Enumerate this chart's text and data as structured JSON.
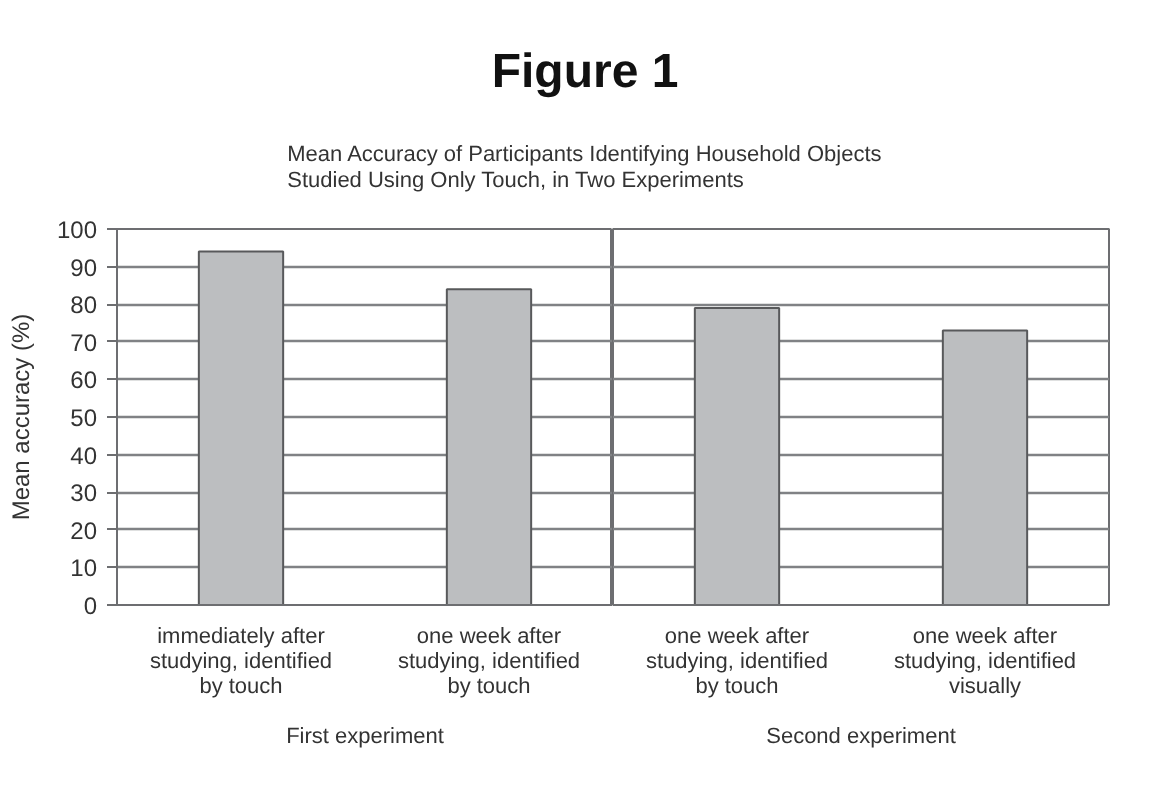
{
  "chart_data": [
    {
      "type": "bar",
      "title": "Figure 1",
      "subtitle": "Mean Accuracy of Participants Identifying Household Objects Studied Using Only Touch, in Two Experiments",
      "ylabel": "Mean accuracy (%)",
      "xlabel": "First experiment",
      "categories": [
        "immediately after studying, identified by touch",
        "one week after studying, identified by touch"
      ],
      "values": [
        94,
        84
      ],
      "color": "#bcbec0",
      "ylim": [
        0,
        100
      ],
      "yticks": [
        0,
        10,
        20,
        30,
        40,
        50,
        60,
        70,
        80,
        90,
        100
      ],
      "grid": "y"
    },
    {
      "type": "bar",
      "xlabel": "Second experiment",
      "categories": [
        "one week after studying, identified by touch",
        "one week after studying, identified visually"
      ],
      "values": [
        79,
        73
      ],
      "color": "#bcbec0",
      "ylim": [
        0,
        100
      ],
      "yticks": [
        0,
        10,
        20,
        30,
        40,
        50,
        60,
        70,
        80,
        90,
        100
      ],
      "grid": "y",
      "tick_labels": "x"
    }
  ]
}
